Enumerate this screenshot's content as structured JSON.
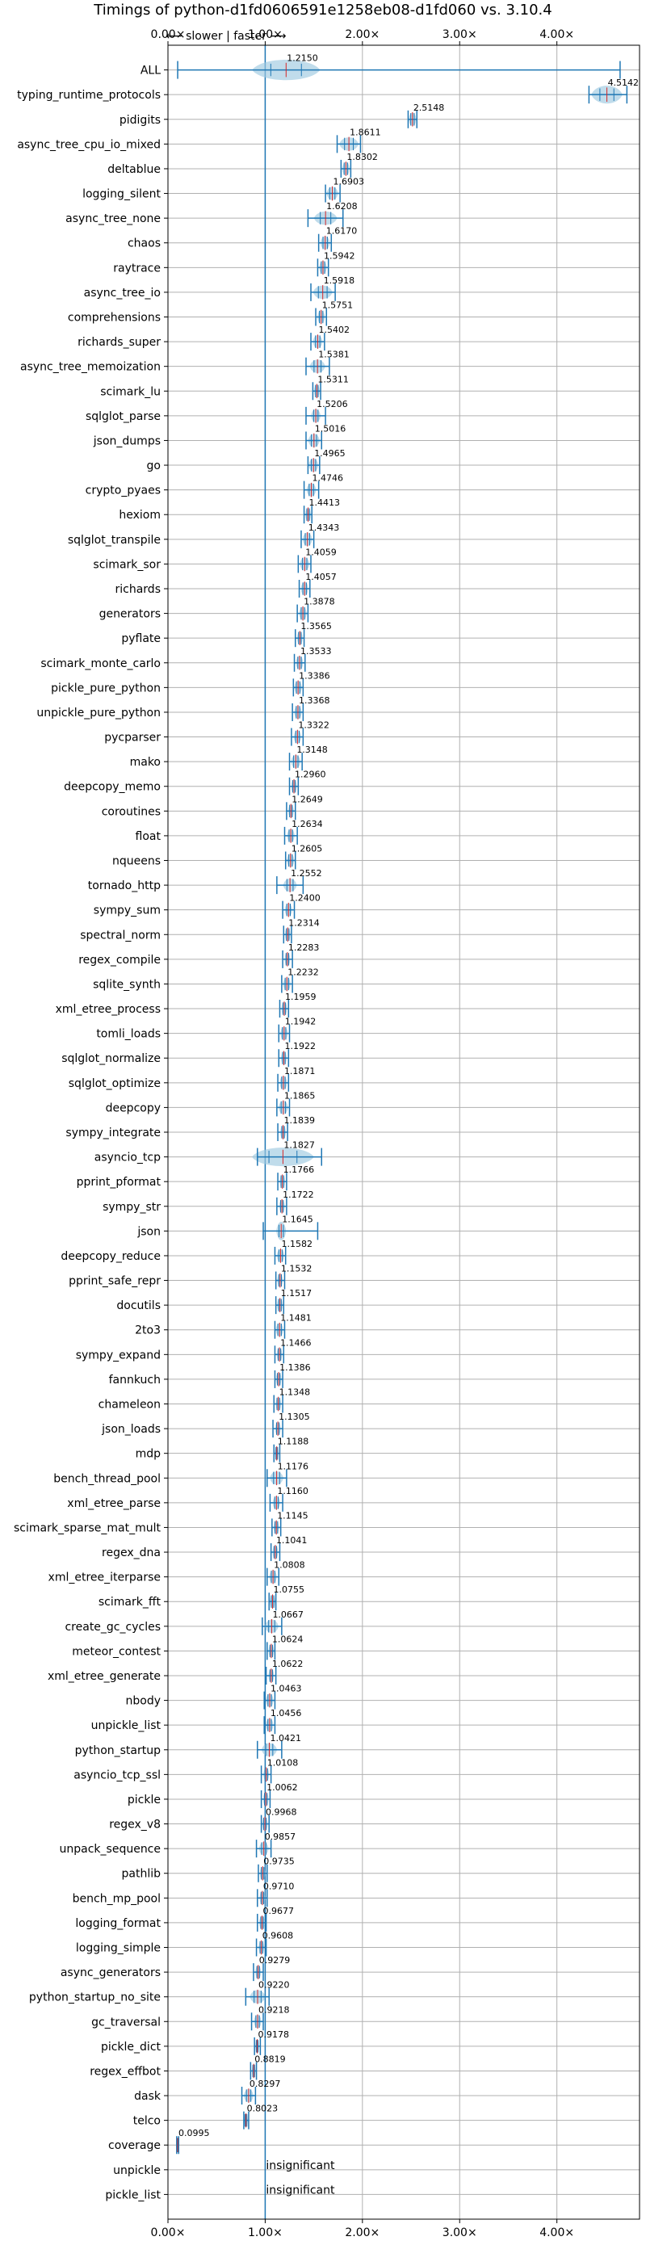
{
  "chart_data": {
    "type": "violin",
    "title": "Timings of python-d1fd0606591e1258eb08-d1fd060 vs. 3.10.4",
    "annotation": "⟵ slower | faster ⟶",
    "xlim": [
      0.0,
      4.85
    ],
    "xticks": [
      0,
      1,
      2,
      3,
      4
    ],
    "xtick_labels": [
      "0.00×",
      "1.00×",
      "2.00×",
      "3.00×",
      "4.00×"
    ],
    "reference_line": 1.0,
    "grid": true,
    "colors": {
      "violin": "#9ecae1",
      "line": "#1f77b4",
      "median": "#d62728",
      "grid": "#b0b0b0"
    },
    "benchmarks": [
      {
        "name": "ALL",
        "value": "1.2150",
        "center": 1.215,
        "lo": 0.1,
        "hi": 4.65,
        "spread": 0.35,
        "height": 0.55
      },
      {
        "name": "typing_runtime_protocols",
        "value": "4.5142",
        "center": 4.5142,
        "lo": 4.33,
        "hi": 4.72,
        "spread": 0.16,
        "height": 0.48
      },
      {
        "name": "pidigits",
        "value": "2.5148",
        "center": 2.5148,
        "lo": 2.47,
        "hi": 2.56,
        "spread": 0.04
      },
      {
        "name": "async_tree_cpu_io_mixed",
        "value": "1.8611",
        "center": 1.8611,
        "lo": 1.74,
        "hi": 1.98,
        "spread": 0.1
      },
      {
        "name": "deltablue",
        "value": "1.8302",
        "center": 1.8302,
        "lo": 1.78,
        "hi": 1.88,
        "spread": 0.04
      },
      {
        "name": "logging_silent",
        "value": "1.6903",
        "center": 1.6903,
        "lo": 1.62,
        "hi": 1.77,
        "spread": 0.06
      },
      {
        "name": "async_tree_none",
        "value": "1.6208",
        "center": 1.6208,
        "lo": 1.44,
        "hi": 1.8,
        "spread": 0.12
      },
      {
        "name": "chaos",
        "value": "1.6170",
        "center": 1.617,
        "lo": 1.55,
        "hi": 1.68,
        "spread": 0.05
      },
      {
        "name": "raytrace",
        "value": "1.5942",
        "center": 1.5942,
        "lo": 1.54,
        "hi": 1.65,
        "spread": 0.04
      },
      {
        "name": "async_tree_io",
        "value": "1.5918",
        "center": 1.5918,
        "lo": 1.47,
        "hi": 1.72,
        "spread": 0.1
      },
      {
        "name": "comprehensions",
        "value": "1.5751",
        "center": 1.5751,
        "lo": 1.52,
        "hi": 1.63,
        "spread": 0.04
      },
      {
        "name": "richards_super",
        "value": "1.5402",
        "center": 1.5402,
        "lo": 1.47,
        "hi": 1.61,
        "spread": 0.05
      },
      {
        "name": "async_tree_memoization",
        "value": "1.5381",
        "center": 1.5381,
        "lo": 1.42,
        "hi": 1.66,
        "spread": 0.08
      },
      {
        "name": "scimark_lu",
        "value": "1.5311",
        "center": 1.5311,
        "lo": 1.49,
        "hi": 1.57,
        "spread": 0.03
      },
      {
        "name": "sqlglot_parse",
        "value": "1.5206",
        "center": 1.5206,
        "lo": 1.42,
        "hi": 1.62,
        "spread": 0.05
      },
      {
        "name": "json_dumps",
        "value": "1.5016",
        "center": 1.5016,
        "lo": 1.42,
        "hi": 1.58,
        "spread": 0.06
      },
      {
        "name": "go",
        "value": "1.4965",
        "center": 1.4965,
        "lo": 1.44,
        "hi": 1.56,
        "spread": 0.05
      },
      {
        "name": "crypto_pyaes",
        "value": "1.4746",
        "center": 1.4746,
        "lo": 1.4,
        "hi": 1.55,
        "spread": 0.05
      },
      {
        "name": "hexiom",
        "value": "1.4413",
        "center": 1.4413,
        "lo": 1.4,
        "hi": 1.48,
        "spread": 0.03
      },
      {
        "name": "sqlglot_transpile",
        "value": "1.4343",
        "center": 1.4343,
        "lo": 1.37,
        "hi": 1.5,
        "spread": 0.05
      },
      {
        "name": "scimark_sor",
        "value": "1.4059",
        "center": 1.4059,
        "lo": 1.34,
        "hi": 1.47,
        "spread": 0.05
      },
      {
        "name": "richards",
        "value": "1.4057",
        "center": 1.4057,
        "lo": 1.35,
        "hi": 1.46,
        "spread": 0.04
      },
      {
        "name": "generators",
        "value": "1.3878",
        "center": 1.3878,
        "lo": 1.33,
        "hi": 1.44,
        "spread": 0.04
      },
      {
        "name": "pyflate",
        "value": "1.3565",
        "center": 1.3565,
        "lo": 1.31,
        "hi": 1.4,
        "spread": 0.03
      },
      {
        "name": "scimark_monte_carlo",
        "value": "1.3533",
        "center": 1.3533,
        "lo": 1.3,
        "hi": 1.41,
        "spread": 0.04
      },
      {
        "name": "pickle_pure_python",
        "value": "1.3386",
        "center": 1.3386,
        "lo": 1.29,
        "hi": 1.39,
        "spread": 0.04
      },
      {
        "name": "unpickle_pure_python",
        "value": "1.3368",
        "center": 1.3368,
        "lo": 1.28,
        "hi": 1.39,
        "spread": 0.04
      },
      {
        "name": "pycparser",
        "value": "1.3322",
        "center": 1.3322,
        "lo": 1.27,
        "hi": 1.39,
        "spread": 0.04
      },
      {
        "name": "mako",
        "value": "1.3148",
        "center": 1.3148,
        "lo": 1.25,
        "hi": 1.38,
        "spread": 0.05
      },
      {
        "name": "deepcopy_memo",
        "value": "1.2960",
        "center": 1.296,
        "lo": 1.25,
        "hi": 1.34,
        "spread": 0.03
      },
      {
        "name": "coroutines",
        "value": "1.2649",
        "center": 1.2649,
        "lo": 1.22,
        "hi": 1.31,
        "spread": 0.03
      },
      {
        "name": "float",
        "value": "1.2634",
        "center": 1.2634,
        "lo": 1.2,
        "hi": 1.33,
        "spread": 0.04
      },
      {
        "name": "nqueens",
        "value": "1.2605",
        "center": 1.2605,
        "lo": 1.21,
        "hi": 1.31,
        "spread": 0.04
      },
      {
        "name": "tornado_http",
        "value": "1.2552",
        "center": 1.2552,
        "lo": 1.12,
        "hi": 1.39,
        "spread": 0.07
      },
      {
        "name": "sympy_sum",
        "value": "1.2400",
        "center": 1.24,
        "lo": 1.18,
        "hi": 1.3,
        "spread": 0.04
      },
      {
        "name": "spectral_norm",
        "value": "1.2314",
        "center": 1.2314,
        "lo": 1.19,
        "hi": 1.27,
        "spread": 0.03
      },
      {
        "name": "regex_compile",
        "value": "1.2283",
        "center": 1.2283,
        "lo": 1.18,
        "hi": 1.28,
        "spread": 0.03
      },
      {
        "name": "sqlite_synth",
        "value": "1.2232",
        "center": 1.2232,
        "lo": 1.17,
        "hi": 1.28,
        "spread": 0.04
      },
      {
        "name": "xml_etree_process",
        "value": "1.1959",
        "center": 1.1959,
        "lo": 1.15,
        "hi": 1.24,
        "spread": 0.03
      },
      {
        "name": "tomli_loads",
        "value": "1.1942",
        "center": 1.1942,
        "lo": 1.14,
        "hi": 1.25,
        "spread": 0.04
      },
      {
        "name": "sqlglot_normalize",
        "value": "1.1922",
        "center": 1.1922,
        "lo": 1.14,
        "hi": 1.24,
        "spread": 0.03
      },
      {
        "name": "sqlglot_optimize",
        "value": "1.1871",
        "center": 1.1871,
        "lo": 1.13,
        "hi": 1.24,
        "spread": 0.04
      },
      {
        "name": "deepcopy",
        "value": "1.1865",
        "center": 1.1865,
        "lo": 1.12,
        "hi": 1.25,
        "spread": 0.05
      },
      {
        "name": "sympy_integrate",
        "value": "1.1839",
        "center": 1.1839,
        "lo": 1.13,
        "hi": 1.23,
        "spread": 0.03
      },
      {
        "name": "asyncio_tcp",
        "value": "1.1827",
        "center": 1.1827,
        "lo": 0.92,
        "hi": 1.58,
        "spread": 0.32,
        "height": 0.5
      },
      {
        "name": "pprint_pformat",
        "value": "1.1766",
        "center": 1.1766,
        "lo": 1.13,
        "hi": 1.22,
        "spread": 0.03
      },
      {
        "name": "sympy_str",
        "value": "1.1722",
        "center": 1.1722,
        "lo": 1.12,
        "hi": 1.22,
        "spread": 0.03
      },
      {
        "name": "json",
        "value": "1.1645",
        "center": 1.1645,
        "lo": 0.98,
        "hi": 1.54,
        "spread": 0.05,
        "height": 0.5
      },
      {
        "name": "deepcopy_reduce",
        "value": "1.1582",
        "center": 1.1582,
        "lo": 1.1,
        "hi": 1.21,
        "spread": 0.04
      },
      {
        "name": "pprint_safe_repr",
        "value": "1.1532",
        "center": 1.1532,
        "lo": 1.11,
        "hi": 1.2,
        "spread": 0.03
      },
      {
        "name": "docutils",
        "value": "1.1517",
        "center": 1.1517,
        "lo": 1.11,
        "hi": 1.19,
        "spread": 0.03
      },
      {
        "name": "2to3",
        "value": "1.1481",
        "center": 1.1481,
        "lo": 1.1,
        "hi": 1.2,
        "spread": 0.04
      },
      {
        "name": "sympy_expand",
        "value": "1.1466",
        "center": 1.1466,
        "lo": 1.1,
        "hi": 1.19,
        "spread": 0.03
      },
      {
        "name": "fannkuch",
        "value": "1.1386",
        "center": 1.1386,
        "lo": 1.1,
        "hi": 1.18,
        "spread": 0.03
      },
      {
        "name": "chameleon",
        "value": "1.1348",
        "center": 1.1348,
        "lo": 1.09,
        "hi": 1.18,
        "spread": 0.03
      },
      {
        "name": "json_loads",
        "value": "1.1305",
        "center": 1.1305,
        "lo": 1.08,
        "hi": 1.18,
        "spread": 0.03
      },
      {
        "name": "mdp",
        "value": "1.1188",
        "center": 1.1188,
        "lo": 1.09,
        "hi": 1.15,
        "spread": 0.02
      },
      {
        "name": "bench_thread_pool",
        "value": "1.1176",
        "center": 1.1176,
        "lo": 1.02,
        "hi": 1.22,
        "spread": 0.07
      },
      {
        "name": "xml_etree_parse",
        "value": "1.1160",
        "center": 1.116,
        "lo": 1.05,
        "hi": 1.18,
        "spread": 0.04
      },
      {
        "name": "scimark_sparse_mat_mult",
        "value": "1.1145",
        "center": 1.1145,
        "lo": 1.07,
        "hi": 1.16,
        "spread": 0.03
      },
      {
        "name": "regex_dna",
        "value": "1.1041",
        "center": 1.1041,
        "lo": 1.06,
        "hi": 1.15,
        "spread": 0.03
      },
      {
        "name": "xml_etree_iterparse",
        "value": "1.0808",
        "center": 1.0808,
        "lo": 1.02,
        "hi": 1.14,
        "spread": 0.04
      },
      {
        "name": "scimark_fft",
        "value": "1.0755",
        "center": 1.0755,
        "lo": 1.04,
        "hi": 1.11,
        "spread": 0.03
      },
      {
        "name": "create_gc_cycles",
        "value": "1.0667",
        "center": 1.0667,
        "lo": 0.97,
        "hi": 1.17,
        "spread": 0.07
      },
      {
        "name": "meteor_contest",
        "value": "1.0624",
        "center": 1.0624,
        "lo": 1.02,
        "hi": 1.1,
        "spread": 0.03
      },
      {
        "name": "xml_etree_generate",
        "value": "1.0622",
        "center": 1.0622,
        "lo": 1.01,
        "hi": 1.11,
        "spread": 0.03
      },
      {
        "name": "nbody",
        "value": "1.0463",
        "center": 1.0463,
        "lo": 0.99,
        "hi": 1.1,
        "spread": 0.04
      },
      {
        "name": "unpickle_list",
        "value": "1.0456",
        "center": 1.0456,
        "lo": 0.99,
        "hi": 1.1,
        "spread": 0.04
      },
      {
        "name": "python_startup",
        "value": "1.0421",
        "center": 1.0421,
        "lo": 0.92,
        "hi": 1.17,
        "spread": 0.08
      },
      {
        "name": "asyncio_tcp_ssl",
        "value": "1.0108",
        "center": 1.0108,
        "lo": 0.96,
        "hi": 1.06,
        "spread": 0.03
      },
      {
        "name": "pickle",
        "value": "1.0062",
        "center": 1.0062,
        "lo": 0.96,
        "hi": 1.05,
        "spread": 0.03
      },
      {
        "name": "regex_v8",
        "value": "0.9968",
        "center": 0.9968,
        "lo": 0.96,
        "hi": 1.04,
        "spread": 0.03
      },
      {
        "name": "unpack_sequence",
        "value": "0.9857",
        "center": 0.9857,
        "lo": 0.91,
        "hi": 1.06,
        "spread": 0.05
      },
      {
        "name": "pathlib",
        "value": "0.9735",
        "center": 0.9735,
        "lo": 0.93,
        "hi": 1.02,
        "spread": 0.03
      },
      {
        "name": "bench_mp_pool",
        "value": "0.9710",
        "center": 0.971,
        "lo": 0.92,
        "hi": 1.02,
        "spread": 0.03
      },
      {
        "name": "logging_format",
        "value": "0.9677",
        "center": 0.9677,
        "lo": 0.92,
        "hi": 1.01,
        "spread": 0.03
      },
      {
        "name": "logging_simple",
        "value": "0.9608",
        "center": 0.9608,
        "lo": 0.91,
        "hi": 1.01,
        "spread": 0.03
      },
      {
        "name": "async_generators",
        "value": "0.9279",
        "center": 0.9279,
        "lo": 0.88,
        "hi": 0.98,
        "spread": 0.03
      },
      {
        "name": "python_startup_no_site",
        "value": "0.9220",
        "center": 0.922,
        "lo": 0.8,
        "hi": 1.04,
        "spread": 0.08
      },
      {
        "name": "gc_traversal",
        "value": "0.9218",
        "center": 0.9218,
        "lo": 0.86,
        "hi": 0.98,
        "spread": 0.04
      },
      {
        "name": "pickle_dict",
        "value": "0.9178",
        "center": 0.9178,
        "lo": 0.89,
        "hi": 0.95,
        "spread": 0.02
      },
      {
        "name": "regex_effbot",
        "value": "0.8819",
        "center": 0.8819,
        "lo": 0.85,
        "hi": 0.91,
        "spread": 0.02
      },
      {
        "name": "dask",
        "value": "0.8297",
        "center": 0.8297,
        "lo": 0.76,
        "hi": 0.9,
        "spread": 0.05
      },
      {
        "name": "telco",
        "value": "0.8023",
        "center": 0.8023,
        "lo": 0.78,
        "hi": 0.83,
        "spread": 0.02
      },
      {
        "name": "coverage",
        "value": "0.0995",
        "center": 0.0995,
        "lo": 0.09,
        "hi": 0.11,
        "spread": 0.01
      },
      {
        "name": "unpickle",
        "value": "insignificant",
        "insignificant": true
      },
      {
        "name": "pickle_list",
        "value": "insignificant",
        "insignificant": true
      }
    ]
  }
}
